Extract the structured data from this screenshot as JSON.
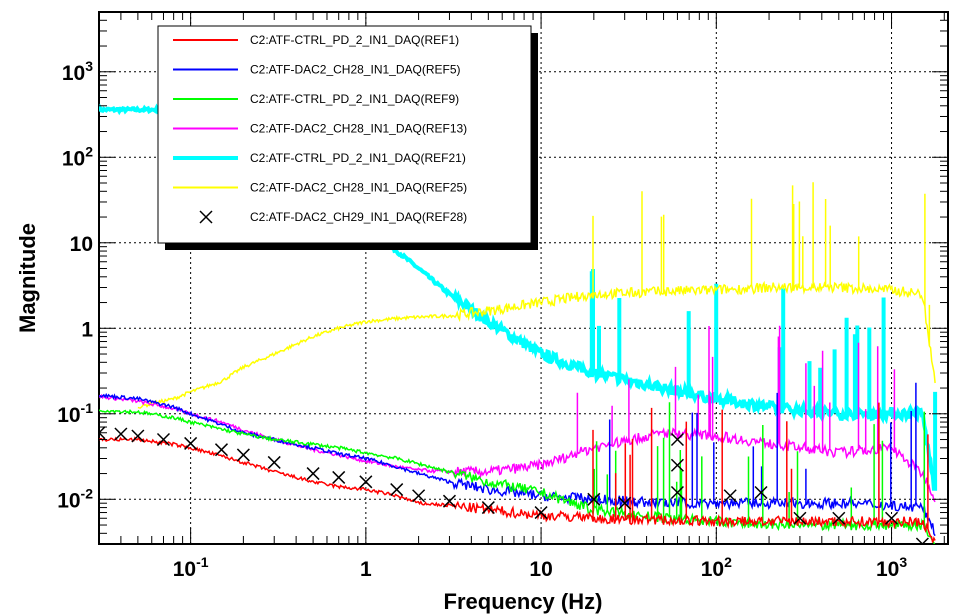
{
  "chart_data": {
    "type": "line",
    "title": "",
    "xlabel": "Frequency (Hz)",
    "ylabel": "Magnitude",
    "xscale": "log",
    "yscale": "log",
    "xlim": [
      0.03,
      2100
    ],
    "ylim": [
      0.003,
      5000
    ],
    "grid": true,
    "legend_position": "top-left",
    "x_ticks": [
      {
        "value": 0.1,
        "base": "10",
        "exp": "-1"
      },
      {
        "value": 1,
        "base": "1",
        "exp": ""
      },
      {
        "value": 10,
        "base": "10",
        "exp": ""
      },
      {
        "value": 100,
        "base": "10",
        "exp": "2"
      },
      {
        "value": 1000,
        "base": "10",
        "exp": "3"
      }
    ],
    "y_ticks": [
      {
        "value": 0.01,
        "base": "10",
        "exp": "-2"
      },
      {
        "value": 0.1,
        "base": "10",
        "exp": "-1"
      },
      {
        "value": 1,
        "base": "1",
        "exp": ""
      },
      {
        "value": 10,
        "base": "10",
        "exp": ""
      },
      {
        "value": 100,
        "base": "10",
        "exp": "2"
      },
      {
        "value": 1000,
        "base": "10",
        "exp": "3"
      }
    ],
    "series": [
      {
        "name": "C2:ATF-CTRL_PD_2_IN1_DAQ(REF1)",
        "color": "#ff0000",
        "marker": "line",
        "x": [
          0.03,
          0.05,
          0.08,
          0.1,
          0.15,
          0.2,
          0.3,
          0.5,
          0.7,
          1,
          1.5,
          2,
          3,
          5,
          10,
          20,
          50,
          100,
          200,
          500,
          1000,
          1500,
          1800
        ],
        "y": [
          0.05,
          0.05,
          0.044,
          0.04,
          0.032,
          0.027,
          0.021,
          0.016,
          0.014,
          0.013,
          0.011,
          0.009,
          0.0085,
          0.0075,
          0.0065,
          0.006,
          0.0057,
          0.0055,
          0.0055,
          0.0055,
          0.0055,
          0.0055,
          0.003
        ]
      },
      {
        "name": "C2:ATF-DAC2_CH28_IN1_DAQ(REF5)",
        "color": "#0000ff",
        "marker": "line",
        "x": [
          0.03,
          0.05,
          0.08,
          0.1,
          0.15,
          0.2,
          0.3,
          0.5,
          0.7,
          1,
          1.5,
          2,
          3,
          5,
          10,
          20,
          50,
          100,
          200,
          500,
          1000,
          1500,
          1800
        ],
        "y": [
          0.165,
          0.15,
          0.12,
          0.1,
          0.075,
          0.06,
          0.05,
          0.04,
          0.034,
          0.03,
          0.024,
          0.02,
          0.016,
          0.013,
          0.011,
          0.01,
          0.009,
          0.009,
          0.009,
          0.009,
          0.0085,
          0.008,
          0.004
        ]
      },
      {
        "name": "C2:ATF-CTRL_PD_2_IN1_DAQ(REF9)",
        "color": "#00ff00",
        "marker": "line",
        "x": [
          0.03,
          0.05,
          0.08,
          0.1,
          0.15,
          0.2,
          0.3,
          0.5,
          0.7,
          1,
          1.5,
          2,
          3,
          5,
          10,
          20,
          50,
          100,
          200,
          500,
          1000,
          1500,
          1800
        ],
        "y": [
          0.11,
          0.105,
          0.09,
          0.08,
          0.066,
          0.058,
          0.05,
          0.044,
          0.04,
          0.035,
          0.03,
          0.026,
          0.021,
          0.016,
          0.012,
          0.0075,
          0.006,
          0.0055,
          0.005,
          0.005,
          0.005,
          0.005,
          0.003
        ]
      },
      {
        "name": "C2:ATF-DAC2_CH28_IN1_DAQ(REF13)",
        "color": "#ff00ff",
        "marker": "line",
        "x": [
          0.03,
          0.05,
          0.08,
          0.1,
          0.15,
          0.2,
          0.3,
          0.5,
          0.7,
          1,
          1.5,
          2,
          3,
          5,
          10,
          20,
          50,
          100,
          200,
          500,
          1000,
          1500,
          1800
        ],
        "y": [
          0.16,
          0.14,
          0.115,
          0.1,
          0.08,
          0.065,
          0.05,
          0.038,
          0.033,
          0.028,
          0.024,
          0.022,
          0.021,
          0.021,
          0.025,
          0.04,
          0.06,
          0.055,
          0.045,
          0.035,
          0.04,
          0.02,
          0.01
        ]
      },
      {
        "name": "C2:ATF-CTRL_PD_2_IN1_DAQ(REF21)",
        "color": "#00ffff",
        "marker": "line",
        "x": [
          0.03,
          0.05,
          0.08,
          0.1,
          0.15,
          0.2,
          0.3,
          0.5,
          0.7,
          1,
          1.5,
          2,
          3,
          5,
          10,
          20,
          50,
          100,
          200,
          500,
          1000,
          1500,
          1800
        ],
        "y": [
          360,
          360,
          360,
          350,
          300,
          250,
          150,
          70,
          30,
          15,
          8,
          5,
          2.5,
          1.2,
          0.5,
          0.3,
          0.2,
          0.15,
          0.12,
          0.1,
          0.1,
          0.1,
          0.01
        ]
      },
      {
        "name": "C2:ATF-DAC2_CH28_IN1_DAQ(REF25)",
        "color": "#ffff00",
        "marker": "line",
        "x": [
          0.05,
          0.08,
          0.1,
          0.15,
          0.2,
          0.3,
          0.5,
          0.7,
          1,
          1.5,
          2,
          3,
          5,
          10,
          20,
          50,
          100,
          200,
          500,
          1000,
          1500,
          1800
        ],
        "y": [
          0.12,
          0.15,
          0.18,
          0.24,
          0.35,
          0.5,
          0.8,
          1.0,
          1.2,
          1.3,
          1.35,
          1.4,
          1.6,
          2.0,
          2.5,
          2.7,
          2.8,
          3.0,
          3.0,
          2.8,
          2.5,
          0.2
        ]
      },
      {
        "name": "C2:ATF-DAC2_CH29_IN1_DAQ(REF28)",
        "color": "#000000",
        "marker": "x",
        "x": [
          0.03,
          0.04,
          0.05,
          0.07,
          0.1,
          0.15,
          0.2,
          0.3,
          0.5,
          0.7,
          1,
          1.5,
          2,
          3,
          5,
          10,
          20,
          30,
          60,
          60,
          60,
          120,
          180,
          300,
          500,
          1000,
          1500
        ],
        "y": [
          0.06,
          0.058,
          0.055,
          0.05,
          0.045,
          0.038,
          0.033,
          0.027,
          0.02,
          0.018,
          0.016,
          0.013,
          0.011,
          0.0095,
          0.008,
          0.007,
          0.01,
          0.009,
          0.05,
          0.025,
          0.012,
          0.011,
          0.012,
          0.006,
          0.006,
          0.006,
          0.003
        ]
      }
    ]
  }
}
